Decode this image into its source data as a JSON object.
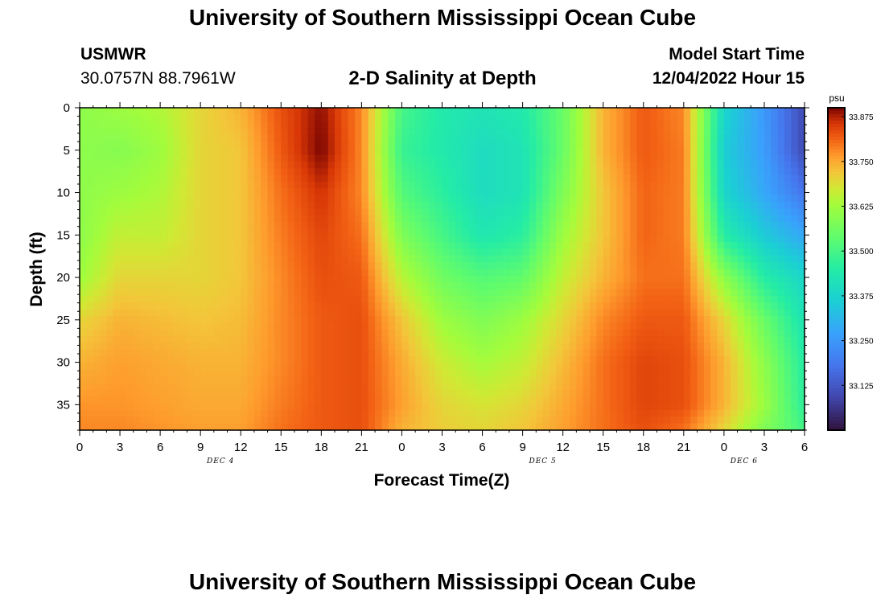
{
  "page": {
    "title": "University of Southern Mississippi Ocean Cube",
    "station": "USMWR",
    "coords": "30.0757N  88.7961W",
    "subtitle": "2-D Salinity at Depth",
    "model_start_label": "Model Start Time",
    "model_start_value": "12/04/2022 Hour 15",
    "footer_title": "University of Southern Mississippi Ocean Cube"
  },
  "chart_data": {
    "type": "heatmap",
    "ylabel": "Depth (ft)",
    "xlabel": "Forecast Time(Z)",
    "x_unit": "hours (Z)",
    "y_range": [
      0,
      38
    ],
    "y_inverted": true,
    "y_ticks": [
      "0",
      "5",
      "10",
      "15",
      "20",
      "25",
      "30",
      "35"
    ],
    "x_tick_labels": [
      "0",
      "3",
      "6",
      "9",
      "12",
      "15",
      "18",
      "21",
      "0",
      "3",
      "6",
      "9",
      "12",
      "15",
      "18",
      "21",
      "0",
      "3",
      "6"
    ],
    "date_labels": [
      {
        "label": "DEC 4",
        "at_tick": 3.5
      },
      {
        "label": "DEC 5",
        "at_tick": 11.5
      },
      {
        "label": "DEC 6",
        "at_tick": 16.5
      }
    ],
    "colorbar": {
      "unit": "psu",
      "min": 33.0,
      "max": 33.9,
      "labels": [
        "33.875",
        "33.750",
        "33.625",
        "33.500",
        "33.375",
        "33.250",
        "33.125"
      ],
      "colormap": "turbo"
    },
    "depths": [
      0,
      5,
      10,
      15,
      20,
      25,
      30,
      35,
      38
    ],
    "times": [
      "Dec4 00Z",
      "03Z",
      "06Z",
      "09Z",
      "12Z",
      "15Z",
      "18Z",
      "21Z",
      "Dec5 00Z",
      "03Z",
      "06Z",
      "09Z",
      "12Z",
      "15Z",
      "18Z",
      "21Z",
      "Dec6 00Z",
      "03Z",
      "06Z"
    ],
    "salinity": [
      [
        33.6,
        33.6,
        33.6,
        33.6,
        33.62,
        33.7,
        33.74,
        33.77,
        33.78
      ],
      [
        33.62,
        33.59,
        33.62,
        33.66,
        33.7,
        33.74,
        33.76,
        33.77,
        33.78
      ],
      [
        33.64,
        33.62,
        33.64,
        33.66,
        33.7,
        33.73,
        33.75,
        33.76,
        33.77
      ],
      [
        33.7,
        33.7,
        33.7,
        33.7,
        33.7,
        33.72,
        33.74,
        33.75,
        33.76
      ],
      [
        33.74,
        33.72,
        33.72,
        33.72,
        33.72,
        33.73,
        33.74,
        33.75,
        33.76
      ],
      [
        33.83,
        33.82,
        33.8,
        33.79,
        33.78,
        33.78,
        33.78,
        33.79,
        33.8
      ],
      [
        33.89,
        33.9,
        33.86,
        33.84,
        33.83,
        33.82,
        33.82,
        33.82,
        33.82
      ],
      [
        33.78,
        33.78,
        33.78,
        33.8,
        33.82,
        33.83,
        33.83,
        33.83,
        33.83
      ],
      [
        33.5,
        33.48,
        33.52,
        33.58,
        33.65,
        33.72,
        33.75,
        33.76,
        33.74
      ],
      [
        33.44,
        33.44,
        33.46,
        33.5,
        33.56,
        33.62,
        33.67,
        33.7,
        33.71
      ],
      [
        33.42,
        33.4,
        33.4,
        33.43,
        33.52,
        33.58,
        33.63,
        33.68,
        33.7
      ],
      [
        33.44,
        33.42,
        33.42,
        33.46,
        33.54,
        33.62,
        33.66,
        33.7,
        33.72
      ],
      [
        33.55,
        33.55,
        33.58,
        33.62,
        33.66,
        33.7,
        33.73,
        33.75,
        33.76
      ],
      [
        33.74,
        33.74,
        33.72,
        33.72,
        33.74,
        33.78,
        33.8,
        33.8,
        33.8
      ],
      [
        33.82,
        33.82,
        33.81,
        33.81,
        33.8,
        33.82,
        33.84,
        33.84,
        33.83
      ],
      [
        33.78,
        33.79,
        33.79,
        33.79,
        33.8,
        33.82,
        33.83,
        33.83,
        33.8
      ],
      [
        33.38,
        33.36,
        33.38,
        33.45,
        33.6,
        33.7,
        33.74,
        33.74,
        33.7
      ],
      [
        33.25,
        33.26,
        33.28,
        33.35,
        33.45,
        33.55,
        33.6,
        33.62,
        33.58
      ],
      [
        33.1,
        33.1,
        33.18,
        33.28,
        33.38,
        33.42,
        33.45,
        33.46,
        33.5
      ]
    ]
  }
}
